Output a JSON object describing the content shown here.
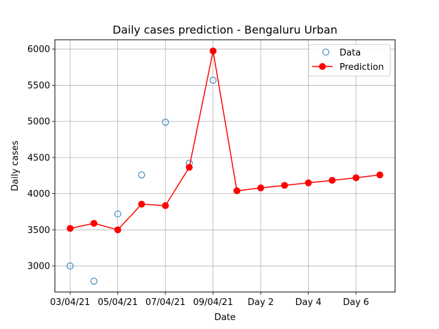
{
  "chart_data": {
    "type": "line",
    "title": "Daily cases prediction - Bengaluru Urban",
    "xlabel": "Date",
    "ylabel": "Daily cases",
    "x_tick_labels": [
      "03/04/21",
      "05/04/21",
      "07/04/21",
      "09/04/21",
      "Day 2",
      "Day 4",
      "Day 6"
    ],
    "x_tick_positions": [
      0,
      2,
      4,
      6,
      8,
      10,
      12
    ],
    "y_ticks": [
      3000,
      3500,
      4000,
      4500,
      5000,
      5500,
      6000
    ],
    "xlim": [
      -0.64,
      13.64
    ],
    "ylim": [
      2640,
      6130
    ],
    "grid": true,
    "legend_position": "top-right",
    "series": [
      {
        "name": "Data",
        "style": "markers-open",
        "color": "#1f77b4",
        "x": [
          0,
          1,
          2,
          3,
          4,
          5,
          6
        ],
        "values": [
          3000,
          2790,
          3720,
          4260,
          4990,
          4420,
          5570
        ]
      },
      {
        "name": "Prediction",
        "style": "line-markers",
        "color": "#ff0000",
        "x": [
          0,
          1,
          2,
          3,
          4,
          5,
          6,
          7,
          8,
          9,
          10,
          11,
          12,
          13
        ],
        "values": [
          3520,
          3590,
          3500,
          3855,
          3835,
          4365,
          5975,
          4040,
          4080,
          4115,
          4150,
          4185,
          4220,
          4260
        ]
      }
    ]
  }
}
